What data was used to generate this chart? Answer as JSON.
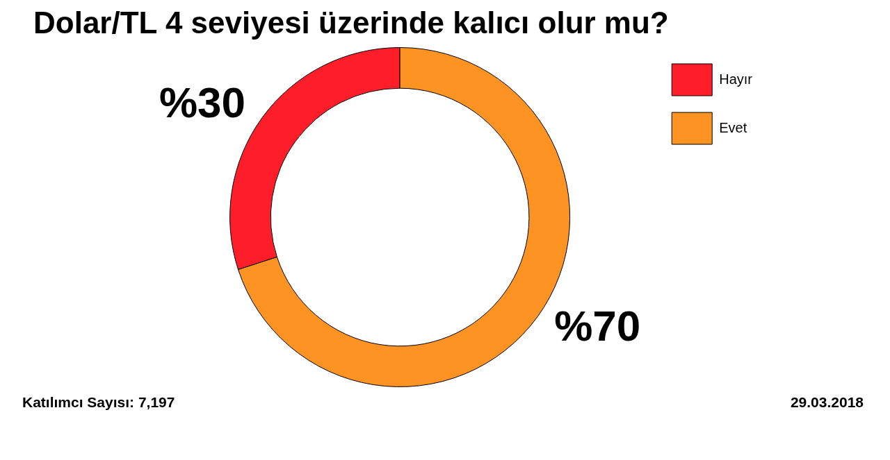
{
  "chart_data": {
    "type": "donut",
    "title": "Dolar/TL 4 seviyesi üzerinde kalıcı olur mu?",
    "categories": [
      "Hayır",
      "Evet"
    ],
    "values": [
      30,
      70
    ],
    "colors": [
      "#fe1e2a",
      "#fd9322"
    ],
    "value_labels": [
      "%30",
      "%70"
    ],
    "legend": "top right",
    "annotations": [
      "Katılımcı Sayısı: 7,197",
      "29.03.2018"
    ]
  }
}
